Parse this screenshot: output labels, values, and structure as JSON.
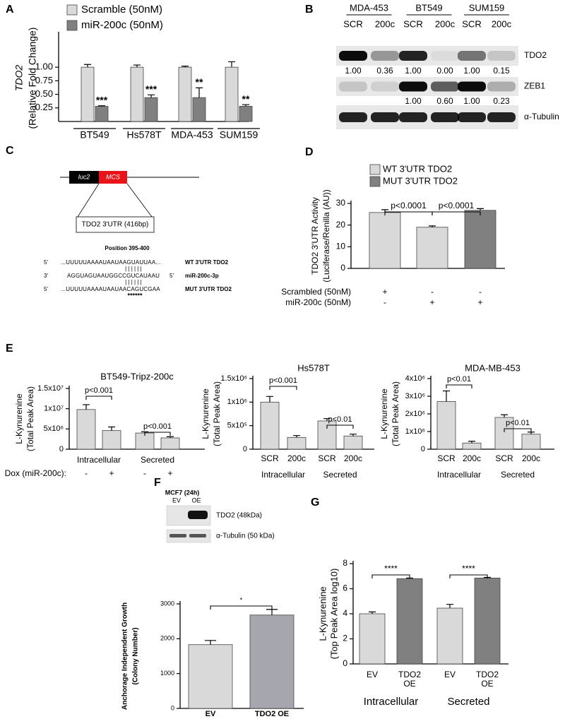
{
  "chart_data": [
    {
      "type": "bar",
      "panel": "A",
      "ylabel": [
        "TDO2",
        "(Relative Fold Change)"
      ],
      "categories": [
        "BT549",
        "Hs578T",
        "MDA-453",
        "SUM159"
      ],
      "series": [
        {
          "name": "Scramble (50nM)",
          "color": "#d9d9d9",
          "values": [
            1.0,
            1.0,
            1.0,
            1.0
          ],
          "errors": [
            0.05,
            0.04,
            0.02,
            0.1
          ]
        },
        {
          "name": "miR-200c (50nM)",
          "color": "#808080",
          "values": [
            0.28,
            0.44,
            0.44,
            0.28
          ],
          "errors": [
            0.01,
            0.05,
            0.18,
            0.03
          ]
        }
      ],
      "comparisons": [
        "***",
        "***",
        "**",
        "**"
      ],
      "ylim": [
        0,
        1.6
      ],
      "yticks": [
        0.25,
        {
          "value": 0.5,
          "label": "0.50"
        },
        0.75,
        {
          "value": 1,
          "label": "1.00"
        }
      ]
    },
    {
      "type": "bar",
      "panel": "D",
      "ylabel": [
        "TDO2 3'UTR Activity",
        "(Luciferase/Renilla (AU))"
      ],
      "legend": [
        {
          "name": "WT 3'UTR TDO2",
          "color": "#d9d9d9"
        },
        {
          "name": "MUT 3'UTR TDO2",
          "color": "#808080"
        }
      ],
      "values": [
        25.8,
        19,
        26.8
      ],
      "errors": [
        1.3,
        0.6,
        0.8
      ],
      "colors": [
        "#d9d9d9",
        "#d9d9d9",
        "#808080"
      ],
      "conditions": [
        {
          "label": "Scrambled (50nM)",
          "signs": [
            "+",
            "-",
            "-"
          ]
        },
        {
          "label": "miR-200c (50nM)",
          "signs": [
            "-",
            "+",
            "+"
          ]
        }
      ],
      "comparisons": [
        "p<0.0001",
        "p<0.0001"
      ],
      "ylim": [
        0,
        30
      ],
      "yticks": [
        0,
        10,
        20,
        30
      ]
    },
    {
      "type": "bar",
      "panel": "E",
      "title": "BT549-Tripz-200c",
      "ylabel": [
        "L-Kynurenine",
        "(Total  Peak Area)"
      ],
      "values": [
        9800000,
        4600000,
        4000000,
        2800000
      ],
      "errors": [
        1200000,
        900000,
        300000,
        300000
      ],
      "colors": [
        "#d9d9d9",
        "#d9d9d9",
        "#d9d9d9",
        "#d9d9d9"
      ],
      "groups": [
        "Intracellular",
        "Secreted"
      ],
      "condition_label": "Dox (miR-200c):",
      "conditions": [
        "-",
        "+",
        "-",
        "+"
      ],
      "comparisons": [
        "p<0.001",
        "p<0.001"
      ],
      "ylim": [
        0,
        15000000
      ],
      "yticks": [
        0,
        {
          "value": 5000000,
          "label": "5x10⁶"
        },
        {
          "value": 10000000,
          "label": "1x10⁷"
        },
        {
          "value": 15000000,
          "label": "1.5x10⁷"
        }
      ]
    },
    {
      "type": "bar",
      "title": "Hs578T",
      "ylabel": [
        "L-Kynurenine",
        "(Total  Peak Area)"
      ],
      "values": [
        1000000,
        250000,
        600000,
        280000
      ],
      "errors": [
        120000,
        40000,
        50000,
        40000
      ],
      "colors": [
        "#d9d9d9",
        "#d9d9d9",
        "#d9d9d9",
        "#d9d9d9"
      ],
      "categories": [
        "SCR",
        "200c",
        "SCR",
        "200c"
      ],
      "groups": [
        "Intracellular",
        "Secreted"
      ],
      "comparisons": [
        "p<0.001",
        "p<0.01"
      ],
      "ylim": [
        0,
        1500000
      ],
      "yticks": [
        0,
        {
          "value": 500000,
          "label": "5x10⁵"
        },
        {
          "value": 1000000,
          "label": "1x10⁶"
        },
        {
          "value": 1500000,
          "label": "1.5x10⁶"
        }
      ]
    },
    {
      "type": "bar",
      "title": "MDA-MB-453",
      "ylabel": [
        "L-Kynurenine",
        "(Total  Peak Area)"
      ],
      "values": [
        2700000,
        350000,
        1800000,
        850000
      ],
      "errors": [
        600000,
        100000,
        150000,
        120000
      ],
      "colors": [
        "#d9d9d9",
        "#d9d9d9",
        "#d9d9d9",
        "#d9d9d9"
      ],
      "categories": [
        "SCR",
        "200c",
        "SCR",
        "200c"
      ],
      "groups": [
        "Intracellular",
        "Secreted"
      ],
      "comparisons": [
        "p<0.01",
        "p<0.01"
      ],
      "ylim": [
        0,
        4000000
      ],
      "yticks": [
        0,
        {
          "value": 1000000,
          "label": "1x10⁶"
        },
        {
          "value": 2000000,
          "label": "2x10⁶"
        },
        {
          "value": 3000000,
          "label": "3x10⁶"
        },
        {
          "value": 4000000,
          "label": "4x10⁶"
        }
      ]
    },
    {
      "type": "bar",
      "panel": "F",
      "ylabel": [
        "Anchorage Independent Growth",
        "(Colony Number)"
      ],
      "values": [
        1830,
        2680
      ],
      "errors": [
        120,
        160
      ],
      "colors": [
        "#d9d9d9",
        "#a6a6ae"
      ],
      "categories": [
        "EV",
        "TDO2 OE"
      ],
      "comparisons": [
        "*"
      ],
      "ylim": [
        0,
        3000
      ],
      "yticks": [
        0,
        1000,
        2000,
        3000
      ],
      "inset": {
        "title": "MCF7 (24h)",
        "lanes": [
          "EV",
          "OE"
        ],
        "rows": [
          "TDO2 (48kDa)",
          "α-Tubulin  (50 kDa)"
        ]
      }
    },
    {
      "type": "bar",
      "panel": "G",
      "ylabel": [
        "L-Kynurenine",
        "(Top  Peak Area log10)"
      ],
      "values": [
        4.0,
        6.8,
        4.45,
        6.85
      ],
      "errors": [
        0.15,
        0.05,
        0.3,
        0.05
      ],
      "colors": [
        "#d9d9d9",
        "#808080",
        "#d9d9d9",
        "#808080"
      ],
      "categories": [
        [
          "EV"
        ],
        [
          "TDO2",
          "OE"
        ],
        [
          "EV"
        ],
        [
          "TDO2",
          "OE"
        ]
      ],
      "groups": [
        "Intracellular",
        "Secreted"
      ],
      "comparisons": [
        "****",
        "****"
      ],
      "ylim": [
        0,
        8
      ],
      "yticks": [
        0,
        2,
        4,
        6,
        8
      ]
    }
  ],
  "blot": {
    "panel": "B",
    "groups": [
      "MDA-453",
      "BT549",
      "SUM159"
    ],
    "lanes": [
      "SCR",
      "200c",
      "SCR",
      "200c",
      "SCR",
      "200c"
    ],
    "rows": [
      {
        "label": "TDO2",
        "quant": [
          "1.00",
          "0.36",
          "1.00",
          "0.00",
          "1.00",
          "0.15"
        ]
      },
      {
        "label": "ZEB1",
        "quant": [
          null,
          null,
          "1.00",
          "0.60",
          "1.00",
          "0.23"
        ]
      },
      {
        "label": "α-Tubulin"
      }
    ]
  },
  "diagram": {
    "panel": "C",
    "vector": [
      "luc2",
      "MCS"
    ],
    "insert": "TDO2 3'UTR (416bp)",
    "site": "Position 395-400",
    "sequences": [
      {
        "left": "5'",
        "seq": "...UUUUUAAAAUAAUAAGUAUUAA...",
        "label": "WT 3'UTR TDO2"
      },
      {
        "left": "3'",
        "seq": "AGGUAGUAAUGGCCGUCAUAAU",
        "right": "5'",
        "label": "miR-200c-3p"
      },
      {
        "left": "5'",
        "seq": "...UUUUUAAAAUAAUAACAGUCGAA",
        "label": "MUT 3'UTR TDO2"
      }
    ],
    "pairing": "||||||",
    "mutation_mark": "******"
  }
}
